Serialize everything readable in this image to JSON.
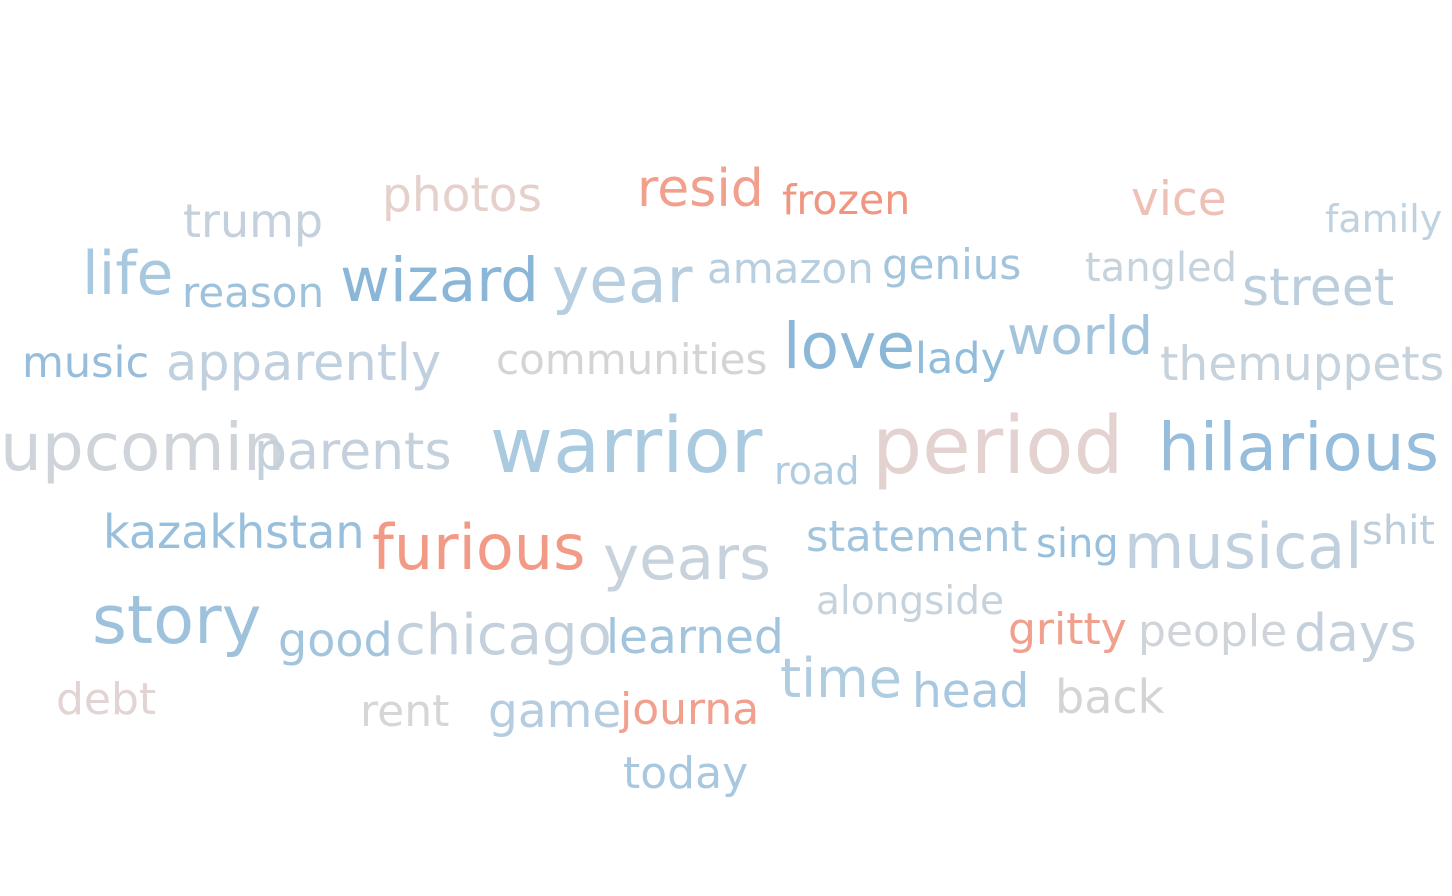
{
  "word_cloud": {
    "words": [
      {
        "text": "trump",
        "color": "#c4d0dc"
      },
      {
        "text": "photos",
        "color": "#e6d0cc"
      },
      {
        "text": "resid",
        "color": "#f2a08e"
      },
      {
        "text": "frozen",
        "color": "#f09680"
      },
      {
        "text": "vice",
        "color": "#eec0b6"
      },
      {
        "text": "family",
        "color": "#c0d2e0"
      },
      {
        "text": "life",
        "color": "#a8c8e0"
      },
      {
        "text": "reason",
        "color": "#9ec2dc"
      },
      {
        "text": "wizard",
        "color": "#8ab6d8"
      },
      {
        "text": "year",
        "color": "#b6cee0"
      },
      {
        "text": "amazon",
        "color": "#b8cfe0"
      },
      {
        "text": "genius",
        "color": "#a2c4dc"
      },
      {
        "text": "tangled",
        "color": "#c6d2dc"
      },
      {
        "text": "street",
        "color": "#bccedc"
      },
      {
        "text": "music",
        "color": "#96bedc"
      },
      {
        "text": "apparently",
        "color": "#c0d0de"
      },
      {
        "text": "communities",
        "color": "#d4d4d6"
      },
      {
        "text": "love",
        "color": "#8cb8d8"
      },
      {
        "text": "lady",
        "color": "#92bcdc"
      },
      {
        "text": "world",
        "color": "#a2c4dc"
      },
      {
        "text": "themuppets",
        "color": "#c6d2dc"
      },
      {
        "text": "upcomin",
        "color": "#ced4da"
      },
      {
        "text": "parents",
        "color": "#c4d0dc"
      },
      {
        "text": "warrior",
        "color": "#aacae0"
      },
      {
        "text": "road",
        "color": "#b0cce0"
      },
      {
        "text": "period",
        "color": "#e4d2d0"
      },
      {
        "text": "hilarious",
        "color": "#96bedc"
      },
      {
        "text": "kazakhstan",
        "color": "#98c0dc"
      },
      {
        "text": "furious",
        "color": "#f29a86"
      },
      {
        "text": "years",
        "color": "#c8d2dc"
      },
      {
        "text": "statement",
        "color": "#a2c4dc"
      },
      {
        "text": "sing",
        "color": "#98c0dc"
      },
      {
        "text": "musical",
        "color": "#c0d0de"
      },
      {
        "text": "shit",
        "color": "#bccedc"
      },
      {
        "text": "alongside",
        "color": "#c6d2dc"
      },
      {
        "text": "story",
        "color": "#9ec2dc"
      },
      {
        "text": "good",
        "color": "#a2c4dc"
      },
      {
        "text": "chicago",
        "color": "#c4d0dc"
      },
      {
        "text": "learned",
        "color": "#a2c4dc"
      },
      {
        "text": "gritty",
        "color": "#f2a08e"
      },
      {
        "text": "people",
        "color": "#ced4da"
      },
      {
        "text": "days",
        "color": "#c4d0dc"
      },
      {
        "text": "time",
        "color": "#b0cce0"
      },
      {
        "text": "head",
        "color": "#a8c8e0"
      },
      {
        "text": "back",
        "color": "#d2d4d6"
      },
      {
        "text": "debt",
        "color": "#e2d4d2"
      },
      {
        "text": "rent",
        "color": "#d6d6d6"
      },
      {
        "text": "game",
        "color": "#b6cce0"
      },
      {
        "text": "journa",
        "color": "#f2a08e"
      },
      {
        "text": "today",
        "color": "#a8c8e0"
      }
    ]
  }
}
